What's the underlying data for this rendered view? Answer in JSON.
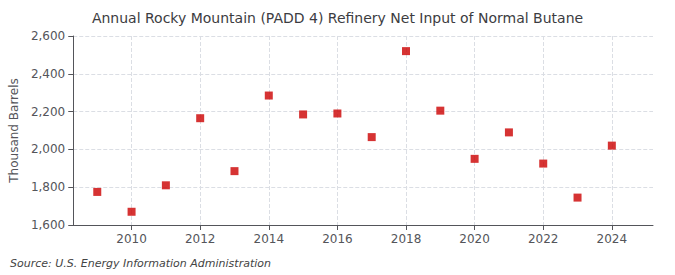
{
  "chart_data": {
    "type": "scatter",
    "title": "Annual Rocky Mountain (PADD 4) Refinery Net Input of Normal Butane",
    "ylabel": "Thousand Barrels",
    "annotations": [
      "Source: U.S. Energy Information Administration"
    ],
    "x": [
      2009,
      2010,
      2011,
      2012,
      2013,
      2014,
      2015,
      2016,
      2017,
      2018,
      2019,
      2020,
      2021,
      2022,
      2023,
      2024
    ],
    "values": [
      1775,
      1670,
      1810,
      2165,
      1885,
      2285,
      2185,
      2190,
      2065,
      2520,
      2205,
      1950,
      2090,
      1925,
      1745,
      2020
    ],
    "color": "#cc0000",
    "marker": "square",
    "xlim": [
      2008.3,
      2025.2
    ],
    "xticks": [
      2010,
      2012,
      2014,
      2016,
      2018,
      2020,
      2022,
      2024
    ],
    "ylim": [
      1600,
      2600
    ],
    "yticks": [
      {
        "value": 1600,
        "label": "1,600"
      },
      {
        "value": 1800,
        "label": "1,800"
      },
      {
        "value": 2000,
        "label": "2,000"
      },
      {
        "value": 2200,
        "label": "2,200"
      },
      {
        "value": 2400,
        "label": "2,400"
      },
      {
        "value": 2600,
        "label": "2,600"
      }
    ],
    "grid": true
  }
}
